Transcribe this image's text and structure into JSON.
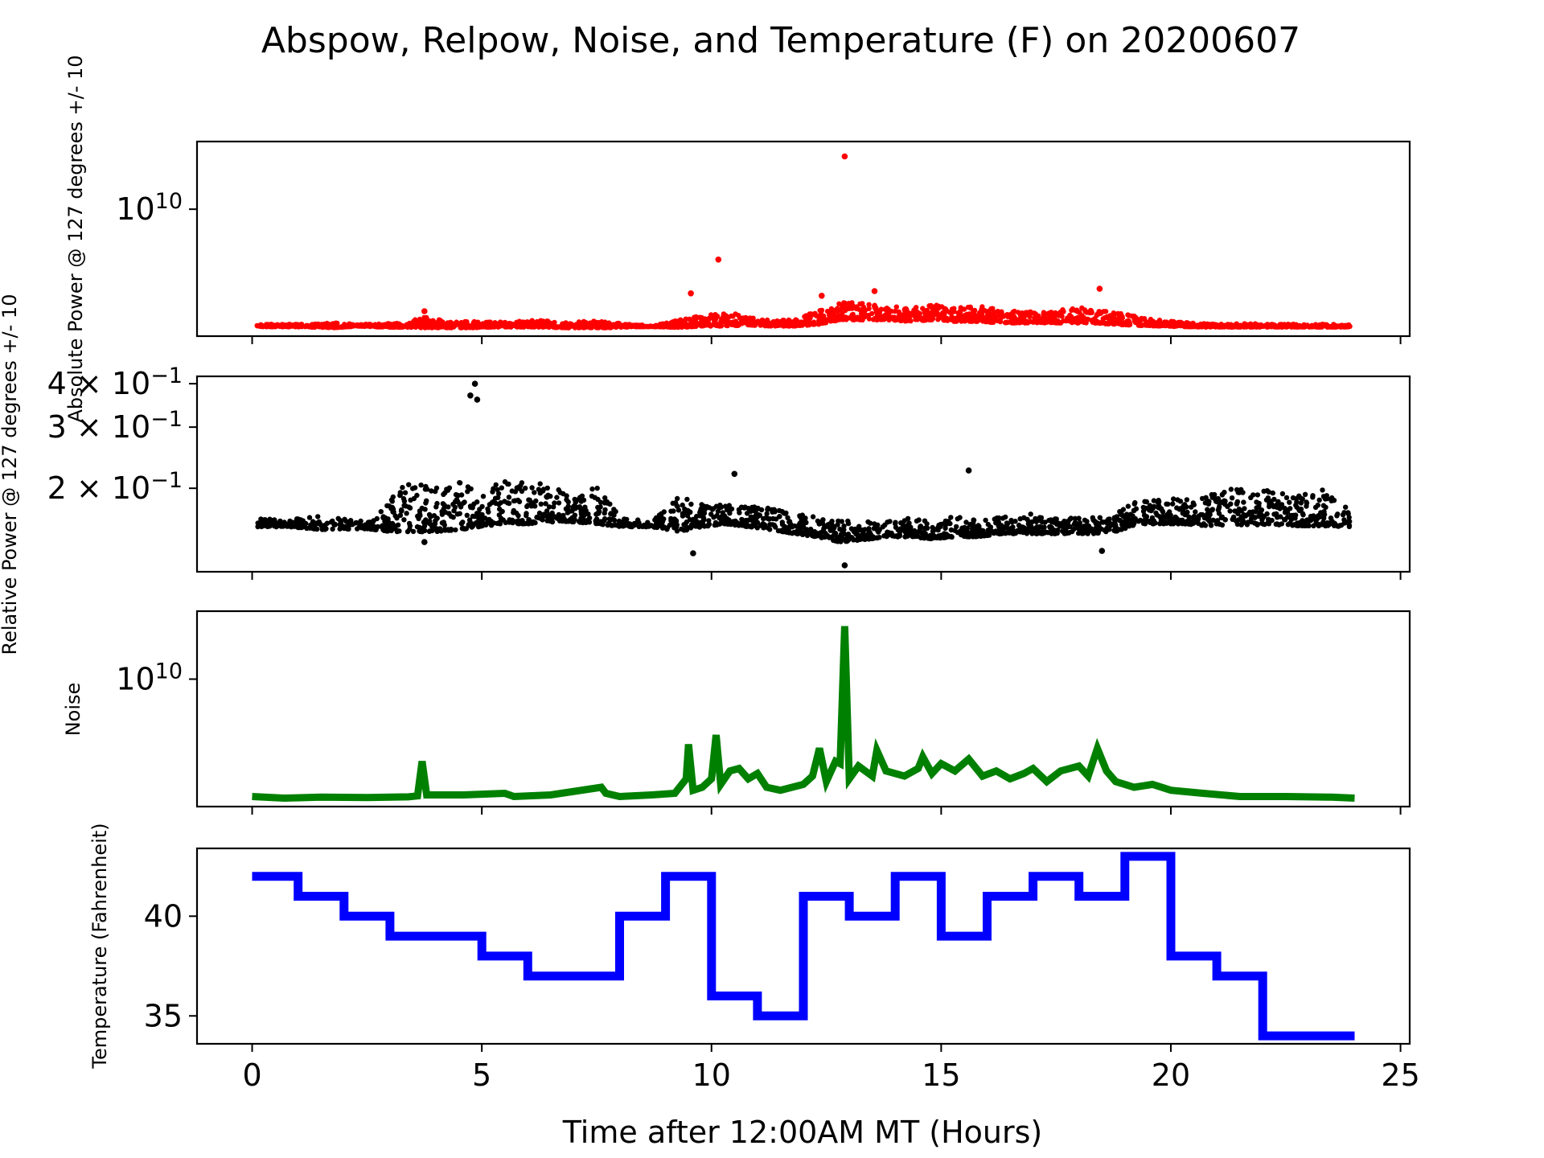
{
  "figure": {
    "title": "Abspow, Relpow, Noise, and Temperature (F) on 20200607",
    "xlabel": "Time after 12:00AM MT (Hours)",
    "x_ticks": [
      0,
      5,
      10,
      15,
      20,
      25
    ],
    "xlim": [
      -1.2,
      25.2
    ]
  },
  "chart_data": [
    {
      "type": "scatter",
      "panel": "abspow",
      "ylabel": "Absolute Power @ 127 degrees +/- 10",
      "yscale": "log",
      "ylim": [
        3000000000.0,
        19000000000.0
      ],
      "y_ticks": [
        {
          "value": 10000000000.0,
          "label": "10^10"
        }
      ],
      "color": "#ff0000",
      "envelope": [
        [
          0.1,
          3280000000.0,
          3360000000.0
        ],
        [
          0.6,
          3280000000.0,
          3360000000.0
        ],
        [
          1.2,
          3270000000.0,
          3360000000.0
        ],
        [
          1.8,
          3250000000.0,
          3400000000.0
        ],
        [
          2.3,
          3300000000.0,
          3360000000.0
        ],
        [
          2.8,
          3270000000.0,
          3370000000.0
        ],
        [
          3.3,
          3260000000.0,
          3420000000.0
        ],
        [
          3.8,
          3250000000.0,
          3600000000.0
        ],
        [
          4.3,
          3250000000.0,
          3450000000.0
        ],
        [
          4.8,
          3250000000.0,
          3500000000.0
        ],
        [
          5.3,
          3270000000.0,
          3420000000.0
        ],
        [
          5.8,
          3270000000.0,
          3480000000.0
        ],
        [
          6.3,
          3270000000.0,
          3500000000.0
        ],
        [
          6.8,
          3250000000.0,
          3420000000.0
        ],
        [
          7.3,
          3250000000.0,
          3460000000.0
        ],
        [
          7.8,
          3250000000.0,
          3450000000.0
        ],
        [
          8.3,
          3280000000.0,
          3350000000.0
        ],
        [
          8.8,
          3280000000.0,
          3330000000.0
        ],
        [
          9.3,
          3260000000.0,
          3500000000.0
        ],
        [
          9.8,
          3300000000.0,
          3700000000.0
        ],
        [
          10.3,
          3300000000.0,
          3750000000.0
        ],
        [
          10.8,
          3330000000.0,
          3650000000.0
        ],
        [
          11.3,
          3300000000.0,
          3480000000.0
        ],
        [
          11.8,
          3300000000.0,
          3500000000.0
        ],
        [
          12.3,
          3350000000.0,
          3800000000.0
        ],
        [
          12.8,
          3500000000.0,
          4150000000.0
        ],
        [
          13.3,
          3500000000.0,
          4100000000.0
        ],
        [
          13.8,
          3500000000.0,
          4000000000.0
        ],
        [
          14.3,
          3450000000.0,
          3950000000.0
        ],
        [
          14.8,
          3500000000.0,
          4050000000.0
        ],
        [
          15.3,
          3450000000.0,
          3950000000.0
        ],
        [
          15.8,
          3450000000.0,
          4000000000.0
        ],
        [
          16.3,
          3400000000.0,
          3850000000.0
        ],
        [
          16.8,
          3400000000.0,
          3800000000.0
        ],
        [
          17.3,
          3400000000.0,
          3750000000.0
        ],
        [
          17.8,
          3400000000.0,
          3950000000.0
        ],
        [
          18.3,
          3400000000.0,
          3900000000.0
        ],
        [
          18.8,
          3350000000.0,
          3750000000.0
        ],
        [
          19.3,
          3320000000.0,
          3600000000.0
        ],
        [
          19.8,
          3300000000.0,
          3480000000.0
        ],
        [
          20.3,
          3280000000.0,
          3420000000.0
        ],
        [
          20.8,
          3270000000.0,
          3380000000.0
        ],
        [
          21.3,
          3270000000.0,
          3370000000.0
        ],
        [
          21.8,
          3270000000.0,
          3380000000.0
        ],
        [
          22.3,
          3270000000.0,
          3360000000.0
        ],
        [
          22.8,
          3270000000.0,
          3360000000.0
        ],
        [
          23.3,
          3270000000.0,
          3370000000.0
        ],
        [
          23.9,
          3270000000.0,
          3340000000.0
        ]
      ],
      "notable_points": [
        {
          "x": 12.9,
          "y": 16500000000.0
        },
        {
          "x": 10.15,
          "y": 6200000000.0
        },
        {
          "x": 9.55,
          "y": 4500000000.0
        },
        {
          "x": 13.55,
          "y": 4600000000.0
        },
        {
          "x": 18.45,
          "y": 4700000000.0
        },
        {
          "x": 12.4,
          "y": 4400000000.0
        },
        {
          "x": 3.75,
          "y": 3800000000.0
        }
      ]
    },
    {
      "type": "scatter",
      "panel": "relpow",
      "ylabel": "Relative Power @ 127 degrees +/- 10",
      "yscale": "log",
      "ylim": [
        0.115,
        0.42
      ],
      "y_ticks": [
        {
          "value": 0.2,
          "label": "2 × 10^-1"
        },
        {
          "value": 0.3,
          "label": "3 × 10^-1"
        },
        {
          "value": 0.4,
          "label": "4 × 10^-1"
        }
      ],
      "color": "#000000",
      "envelope": [
        [
          0.1,
          0.155,
          0.165
        ],
        [
          0.8,
          0.155,
          0.162
        ],
        [
          1.5,
          0.152,
          0.168
        ],
        [
          2.5,
          0.153,
          0.16
        ],
        [
          3.0,
          0.15,
          0.185
        ],
        [
          3.5,
          0.15,
          0.215
        ],
        [
          4.0,
          0.15,
          0.2
        ],
        [
          4.5,
          0.152,
          0.21
        ],
        [
          5.0,
          0.155,
          0.19
        ],
        [
          5.5,
          0.158,
          0.215
        ],
        [
          6.0,
          0.158,
          0.21
        ],
        [
          6.5,
          0.16,
          0.205
        ],
        [
          7.0,
          0.16,
          0.185
        ],
        [
          7.5,
          0.158,
          0.205
        ],
        [
          8.0,
          0.155,
          0.165
        ],
        [
          8.7,
          0.155,
          0.16
        ],
        [
          9.3,
          0.15,
          0.19
        ],
        [
          9.8,
          0.155,
          0.18
        ],
        [
          10.3,
          0.158,
          0.18
        ],
        [
          10.8,
          0.155,
          0.178
        ],
        [
          11.3,
          0.152,
          0.175
        ],
        [
          11.8,
          0.148,
          0.17
        ],
        [
          12.3,
          0.145,
          0.165
        ],
        [
          12.8,
          0.14,
          0.162
        ],
        [
          13.3,
          0.142,
          0.16
        ],
        [
          13.8,
          0.145,
          0.162
        ],
        [
          14.3,
          0.145,
          0.165
        ],
        [
          14.8,
          0.143,
          0.16
        ],
        [
          15.3,
          0.145,
          0.168
        ],
        [
          15.8,
          0.145,
          0.162
        ],
        [
          16.3,
          0.148,
          0.165
        ],
        [
          16.8,
          0.148,
          0.17
        ],
        [
          17.3,
          0.148,
          0.165
        ],
        [
          17.8,
          0.148,
          0.165
        ],
        [
          18.3,
          0.148,
          0.165
        ],
        [
          18.8,
          0.15,
          0.17
        ],
        [
          19.3,
          0.158,
          0.185
        ],
        [
          19.8,
          0.158,
          0.185
        ],
        [
          20.3,
          0.158,
          0.19
        ],
        [
          20.8,
          0.156,
          0.19
        ],
        [
          21.3,
          0.157,
          0.2
        ],
        [
          21.8,
          0.157,
          0.2
        ],
        [
          22.3,
          0.157,
          0.195
        ],
        [
          22.8,
          0.156,
          0.19
        ],
        [
          23.3,
          0.156,
          0.2
        ],
        [
          23.9,
          0.155,
          0.175
        ]
      ],
      "notable_points": [
        {
          "x": 4.85,
          "y": 0.4
        },
        {
          "x": 4.75,
          "y": 0.37
        },
        {
          "x": 4.9,
          "y": 0.36
        },
        {
          "x": 12.9,
          "y": 0.12
        },
        {
          "x": 15.6,
          "y": 0.225
        },
        {
          "x": 10.5,
          "y": 0.22
        },
        {
          "x": 3.75,
          "y": 0.14
        },
        {
          "x": 9.6,
          "y": 0.13
        },
        {
          "x": 18.5,
          "y": 0.132
        }
      ]
    },
    {
      "type": "line",
      "panel": "noise",
      "ylabel": "Noise",
      "yscale": "log",
      "ylim": [
        3000000000.0,
        19000000000.0
      ],
      "y_ticks": [
        {
          "value": 10000000000.0,
          "label": "10^10"
        }
      ],
      "color": "#008000",
      "x": [
        0.0,
        0.7,
        1.5,
        2.5,
        3.4,
        3.6,
        3.7,
        3.8,
        4.6,
        5.5,
        5.7,
        6.5,
        7.6,
        7.7,
        8.0,
        8.7,
        9.2,
        9.45,
        9.5,
        9.6,
        9.8,
        10.0,
        10.1,
        10.2,
        10.4,
        10.6,
        10.8,
        11.0,
        11.2,
        11.5,
        12.0,
        12.2,
        12.35,
        12.5,
        12.7,
        12.8,
        12.9,
        13.0,
        13.2,
        13.5,
        13.6,
        13.8,
        14.2,
        14.5,
        14.6,
        14.8,
        15.0,
        15.3,
        15.6,
        15.9,
        16.2,
        16.5,
        16.8,
        17.0,
        17.3,
        17.6,
        18.0,
        18.2,
        18.4,
        18.6,
        18.8,
        19.2,
        19.6,
        20.0,
        20.7,
        21.5,
        22.5,
        23.5,
        24.0
      ],
      "y": [
        3300000000.0,
        3250000000.0,
        3280000000.0,
        3270000000.0,
        3290000000.0,
        3320000000.0,
        4600000000.0,
        3350000000.0,
        3350000000.0,
        3400000000.0,
        3300000000.0,
        3350000000.0,
        3600000000.0,
        3400000000.0,
        3300000000.0,
        3350000000.0,
        3400000000.0,
        3900000000.0,
        5400000000.0,
        3500000000.0,
        3600000000.0,
        3900000000.0,
        5900000000.0,
        3700000000.0,
        4200000000.0,
        4300000000.0,
        3900000000.0,
        4100000000.0,
        3600000000.0,
        3500000000.0,
        3700000000.0,
        4000000000.0,
        5200000000.0,
        3800000000.0,
        4600000000.0,
        4500000000.0,
        16500000000.0,
        3900000000.0,
        4400000000.0,
        4000000000.0,
        5100000000.0,
        4200000000.0,
        4000000000.0,
        4300000000.0,
        4800000000.0,
        4100000000.0,
        4500000000.0,
        4200000000.0,
        4700000000.0,
        4000000000.0,
        4200000000.0,
        3900000000.0,
        4100000000.0,
        4300000000.0,
        3800000000.0,
        4200000000.0,
        4400000000.0,
        4000000000.0,
        5200000000.0,
        4200000000.0,
        3800000000.0,
        3600000000.0,
        3700000000.0,
        3500000000.0,
        3400000000.0,
        3300000000.0,
        3300000000.0,
        3280000000.0,
        3250000000.0
      ]
    },
    {
      "type": "line",
      "panel": "temperature",
      "ylabel": "Temperature (Fahrenheit)",
      "yscale": "linear",
      "ylim": [
        33.6,
        43.4
      ],
      "y_ticks": [
        {
          "value": 35,
          "label": "35"
        },
        {
          "value": 40,
          "label": "40"
        }
      ],
      "color": "#0000ff",
      "step": true,
      "x": [
        0,
        1,
        2,
        3,
        4,
        5,
        6,
        7,
        8,
        9,
        10,
        11,
        12,
        13,
        14,
        15,
        16,
        17,
        18,
        19,
        20,
        21,
        22,
        23,
        24
      ],
      "y": [
        42,
        41,
        40,
        39,
        39,
        38,
        37,
        37,
        40,
        42,
        36,
        35,
        41,
        40,
        42,
        39,
        41,
        42,
        41,
        43,
        38,
        37,
        34,
        34,
        34
      ]
    }
  ]
}
